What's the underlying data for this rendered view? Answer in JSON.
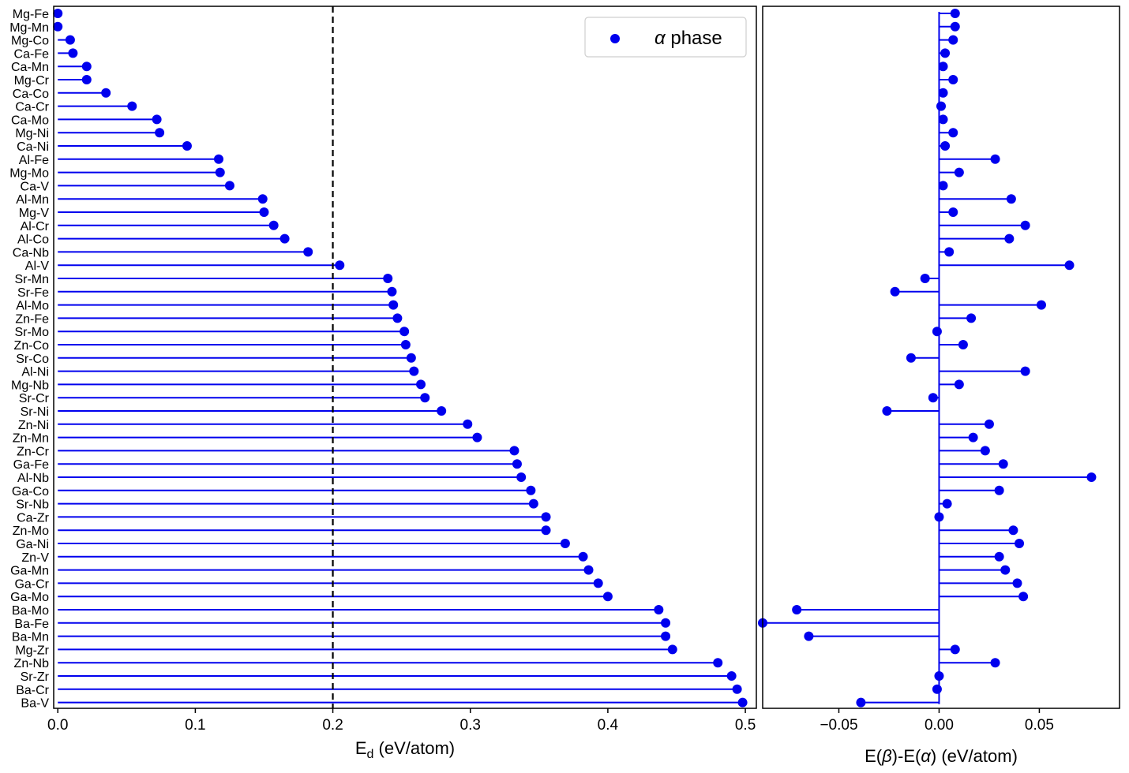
{
  "colors": {
    "series": "#0000ee",
    "axis": "#000000",
    "refline": "#000000"
  },
  "chart_data": [
    {
      "type": "lollipop",
      "orientation": "horizontal",
      "xlabel": "E_d (eV/atom)",
      "xlabel_main": "E",
      "xlabel_sub": "d",
      "xlabel_rest": " (eV/atom)",
      "xlim": [
        -0.003,
        0.508
      ],
      "xticks": [
        0.0,
        0.1,
        0.2,
        0.3,
        0.4,
        0.5
      ],
      "xtick_labels": [
        "0.0",
        "0.1",
        "0.2",
        "0.3",
        "0.4",
        "0.5"
      ],
      "reference_line": {
        "x": 0.2,
        "style": "dashed"
      },
      "legend": {
        "position": "top-right",
        "symbol": "α",
        "text": " phase"
      },
      "grid": false,
      "categories": [
        "Mg-Fe",
        "Mg-Mn",
        "Mg-Co",
        "Ca-Fe",
        "Ca-Mn",
        "Mg-Cr",
        "Ca-Co",
        "Ca-Cr",
        "Ca-Mo",
        "Mg-Ni",
        "Ca-Ni",
        "Al-Fe",
        "Mg-Mo",
        "Ca-V",
        "Al-Mn",
        "Mg-V",
        "Al-Cr",
        "Al-Co",
        "Ca-Nb",
        "Al-V",
        "Sr-Mn",
        "Sr-Fe",
        "Al-Mo",
        "Zn-Fe",
        "Sr-Mo",
        "Zn-Co",
        "Sr-Co",
        "Al-Ni",
        "Mg-Nb",
        "Sr-Cr",
        "Sr-Ni",
        "Zn-Ni",
        "Zn-Mn",
        "Zn-Cr",
        "Ga-Fe",
        "Al-Nb",
        "Ga-Co",
        "Sr-Nb",
        "Ca-Zr",
        "Zn-Mo",
        "Ga-Ni",
        "Zn-V",
        "Ga-Mn",
        "Ga-Cr",
        "Ga-Mo",
        "Ba-Mo",
        "Ba-Fe",
        "Ba-Mn",
        "Mg-Zr",
        "Zn-Nb",
        "Sr-Zr",
        "Ba-Cr",
        "Ba-V"
      ],
      "values": [
        0.0,
        0.0,
        0.009,
        0.011,
        0.021,
        0.021,
        0.035,
        0.054,
        0.072,
        0.074,
        0.094,
        0.117,
        0.118,
        0.125,
        0.149,
        0.15,
        0.157,
        0.165,
        0.182,
        0.205,
        0.24,
        0.243,
        0.244,
        0.247,
        0.252,
        0.253,
        0.257,
        0.259,
        0.264,
        0.267,
        0.279,
        0.298,
        0.305,
        0.332,
        0.334,
        0.337,
        0.344,
        0.346,
        0.355,
        0.355,
        0.369,
        0.382,
        0.386,
        0.393,
        0.4,
        0.437,
        0.442,
        0.442,
        0.447,
        0.48,
        0.49,
        0.494,
        0.498
      ]
    },
    {
      "type": "lollipop",
      "orientation": "horizontal",
      "xlabel": "E(β)-E(α) (eV/atom)",
      "xlabel_parts": [
        "E(",
        "β",
        ")-E(",
        "α",
        ") (eV/atom)"
      ],
      "xlim": [
        -0.088,
        0.09
      ],
      "xticks": [
        -0.05,
        0.0,
        0.05
      ],
      "xtick_labels": [
        "−0.05",
        "0.00",
        "0.05"
      ],
      "grid": false,
      "values": [
        0.008,
        0.008,
        0.007,
        0.003,
        0.002,
        0.007,
        0.002,
        0.001,
        0.002,
        0.007,
        0.003,
        0.028,
        0.01,
        0.002,
        0.036,
        0.007,
        0.043,
        0.035,
        0.005,
        0.065,
        -0.007,
        -0.022,
        0.051,
        0.016,
        -0.001,
        0.012,
        -0.014,
        0.043,
        0.01,
        -0.003,
        -0.026,
        0.025,
        0.017,
        0.023,
        0.032,
        0.076,
        0.03,
        0.004,
        0.0,
        0.037,
        0.04,
        0.03,
        0.033,
        0.039,
        0.042,
        -0.071,
        -0.088,
        -0.065,
        0.008,
        0.028,
        0.0,
        -0.001,
        -0.039
      ]
    }
  ]
}
